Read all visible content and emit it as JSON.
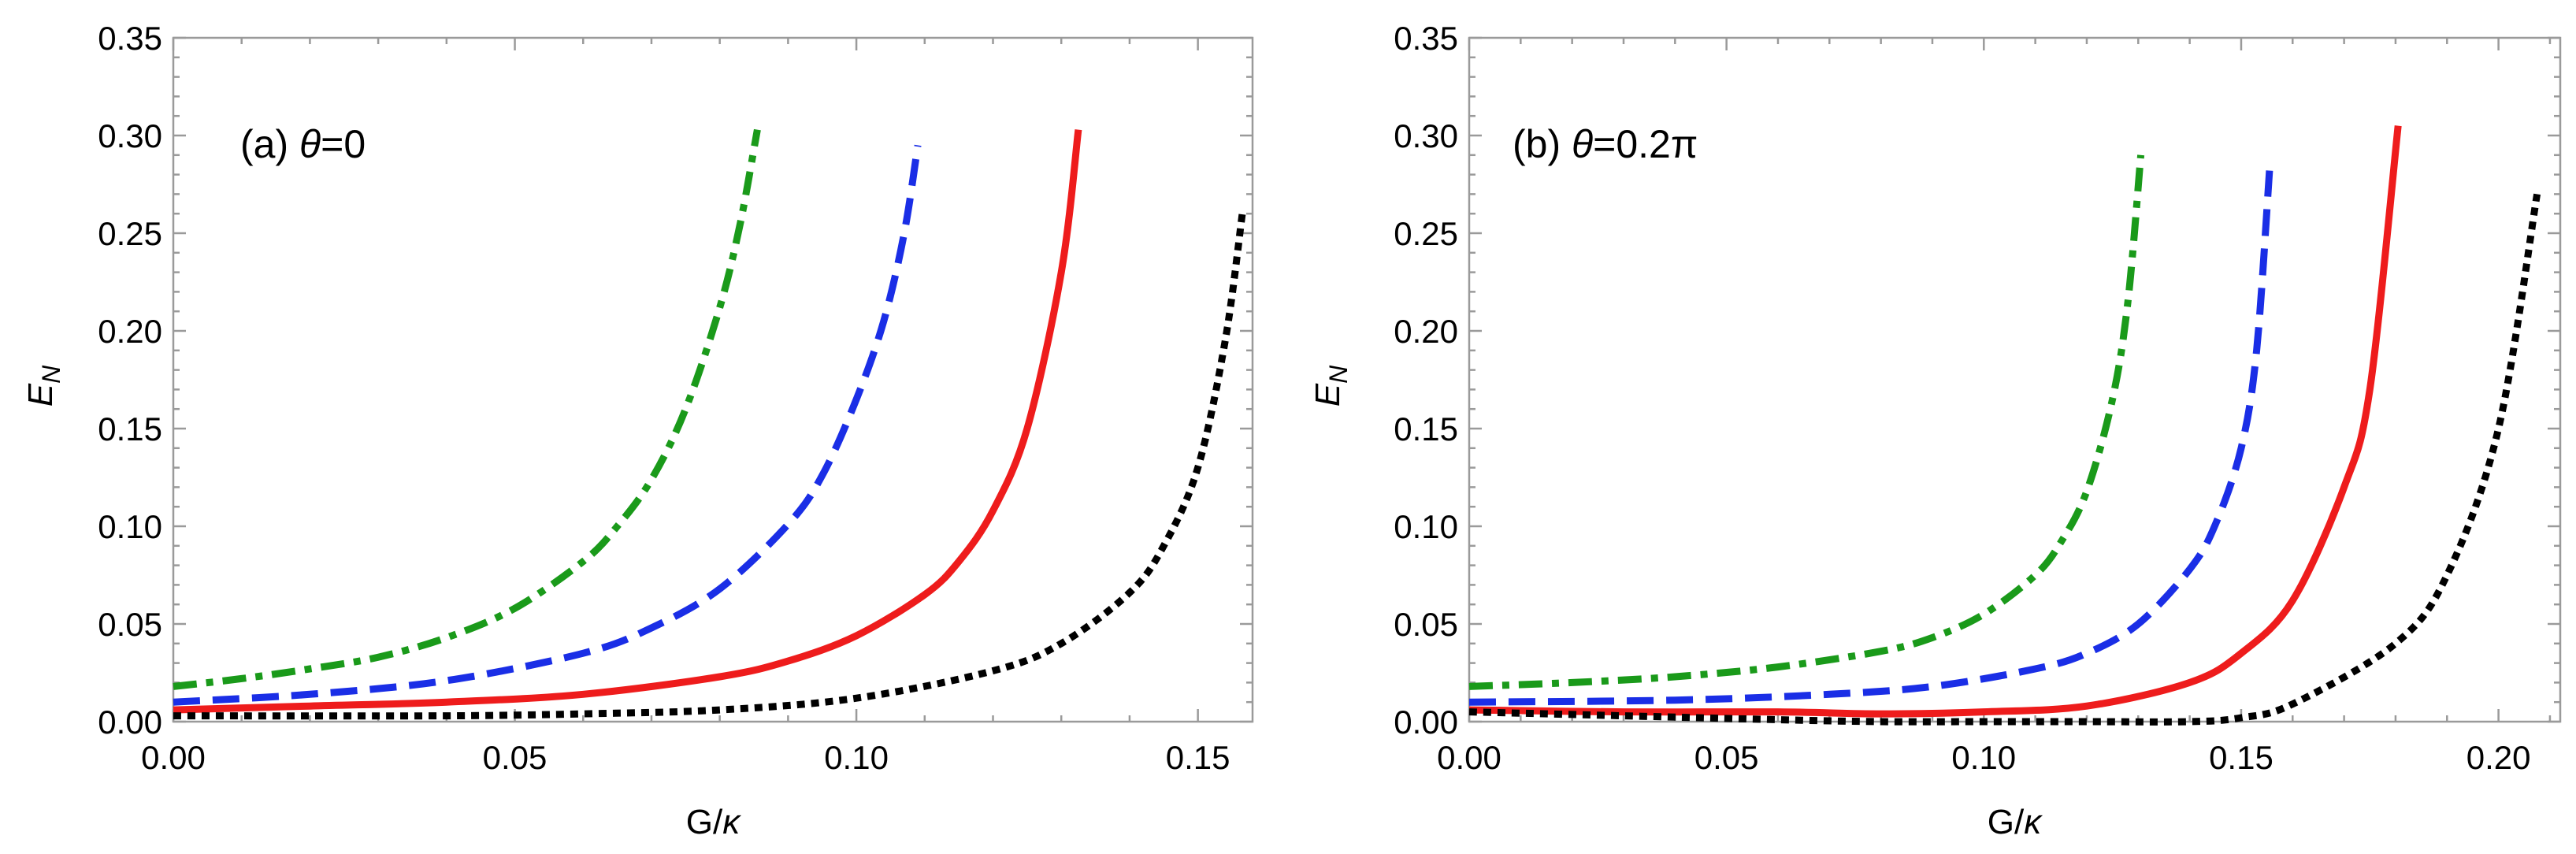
{
  "chart_data": [
    {
      "type": "line",
      "panel_label": {
        "prefix": "(a) ",
        "symbol": "θ",
        "suffix": "=0"
      },
      "xlabel": {
        "main": "G/",
        "symbol": "κ"
      },
      "ylabel": {
        "main": "E",
        "sub": "N"
      },
      "xlim": [
        0,
        0.158
      ],
      "ylim": [
        0,
        0.35
      ],
      "xticks": [
        "0.00",
        "0.05",
        "0.10",
        "0.15"
      ],
      "xtick_values": [
        0,
        0.05,
        0.1,
        0.15
      ],
      "yticks": [
        "0.00",
        "0.05",
        "0.10",
        "0.15",
        "0.20",
        "0.25",
        "0.30",
        "0.35"
      ],
      "ytick_values": [
        0,
        0.05,
        0.1,
        0.15,
        0.2,
        0.25,
        0.3,
        0.35
      ],
      "series": [
        {
          "name": "green dash-dot",
          "color": "#1a9a1a",
          "style": "dashdot",
          "x": [
            0,
            0.01,
            0.02,
            0.03,
            0.04,
            0.05,
            0.06,
            0.065,
            0.07,
            0.075,
            0.08,
            0.083,
            0.0855
          ],
          "y": [
            0.018,
            0.022,
            0.027,
            0.033,
            0.043,
            0.058,
            0.082,
            0.1,
            0.124,
            0.16,
            0.212,
            0.255,
            0.303
          ]
        },
        {
          "name": "blue dashed",
          "color": "#1a2ee6",
          "style": "dashed",
          "x": [
            0,
            0.02,
            0.04,
            0.06,
            0.07,
            0.08,
            0.09,
            0.095,
            0.1,
            0.104,
            0.107,
            0.109
          ],
          "y": [
            0.01,
            0.014,
            0.021,
            0.035,
            0.048,
            0.068,
            0.101,
            0.126,
            0.165,
            0.205,
            0.25,
            0.295
          ]
        },
        {
          "name": "red solid",
          "color": "#ee1c1c",
          "style": "solid",
          "x": [
            0,
            0.02,
            0.04,
            0.06,
            0.08,
            0.09,
            0.1,
            0.11,
            0.115,
            0.12,
            0.125,
            0.13,
            0.1325
          ],
          "y": [
            0.006,
            0.008,
            0.01,
            0.014,
            0.023,
            0.031,
            0.044,
            0.065,
            0.082,
            0.108,
            0.15,
            0.23,
            0.303
          ]
        },
        {
          "name": "black dotted",
          "color": "#000000",
          "style": "dotted",
          "x": [
            0,
            0.04,
            0.06,
            0.08,
            0.1,
            0.12,
            0.13,
            0.14,
            0.145,
            0.15,
            0.154,
            0.1565
          ],
          "y": [
            0.003,
            0.003,
            0.004,
            0.006,
            0.012,
            0.026,
            0.04,
            0.066,
            0.09,
            0.13,
            0.195,
            0.26
          ]
        }
      ]
    },
    {
      "type": "line",
      "panel_label": {
        "prefix": "(b) ",
        "symbol": "θ",
        "suffix": "=0.2π"
      },
      "xlabel": {
        "main": "G/",
        "symbol": "κ"
      },
      "ylabel": {
        "main": "E",
        "sub": "N"
      },
      "xlim": [
        0,
        0.212
      ],
      "ylim": [
        0,
        0.35
      ],
      "xticks": [
        "0.00",
        "0.05",
        "0.10",
        "0.15",
        "0.20"
      ],
      "xtick_values": [
        0,
        0.05,
        0.1,
        0.15,
        0.2
      ],
      "yticks": [
        "0.00",
        "0.05",
        "0.10",
        "0.15",
        "0.20",
        "0.25",
        "0.30",
        "0.35"
      ],
      "ytick_values": [
        0,
        0.05,
        0.1,
        0.15,
        0.2,
        0.25,
        0.3,
        0.35
      ],
      "series": [
        {
          "name": "green dash-dot",
          "color": "#1a9a1a",
          "style": "dashdot",
          "x": [
            0,
            0.02,
            0.04,
            0.06,
            0.08,
            0.09,
            0.1,
            0.11,
            0.115,
            0.12,
            0.125,
            0.128,
            0.1305
          ],
          "y": [
            0.018,
            0.02,
            0.023,
            0.028,
            0.036,
            0.043,
            0.055,
            0.075,
            0.092,
            0.118,
            0.165,
            0.215,
            0.29
          ]
        },
        {
          "name": "blue dashed",
          "color": "#1a2ee6",
          "style": "dashed",
          "x": [
            0,
            0.04,
            0.07,
            0.09,
            0.11,
            0.12,
            0.13,
            0.14,
            0.145,
            0.15,
            0.153,
            0.1555
          ],
          "y": [
            0.01,
            0.011,
            0.014,
            0.018,
            0.027,
            0.035,
            0.05,
            0.078,
            0.101,
            0.14,
            0.19,
            0.282
          ]
        },
        {
          "name": "red solid",
          "color": "#ee1c1c",
          "style": "solid",
          "x": [
            0,
            0.03,
            0.06,
            0.08,
            0.1,
            0.12,
            0.14,
            0.15,
            0.16,
            0.17,
            0.175,
            0.1805
          ],
          "y": [
            0.006,
            0.005,
            0.005,
            0.004,
            0.005,
            0.008,
            0.02,
            0.035,
            0.062,
            0.12,
            0.17,
            0.305
          ]
        },
        {
          "name": "black dotted",
          "color": "#000000",
          "style": "dotted",
          "x": [
            0,
            0.03,
            0.06,
            0.08,
            0.1,
            0.12,
            0.14,
            0.15,
            0.16,
            0.18,
            0.19,
            0.2,
            0.2075
          ],
          "y": [
            0.005,
            0.003,
            0.001,
            0.0,
            0.0,
            0.0,
            0.0,
            0.002,
            0.009,
            0.04,
            0.075,
            0.15,
            0.27
          ]
        }
      ]
    }
  ]
}
